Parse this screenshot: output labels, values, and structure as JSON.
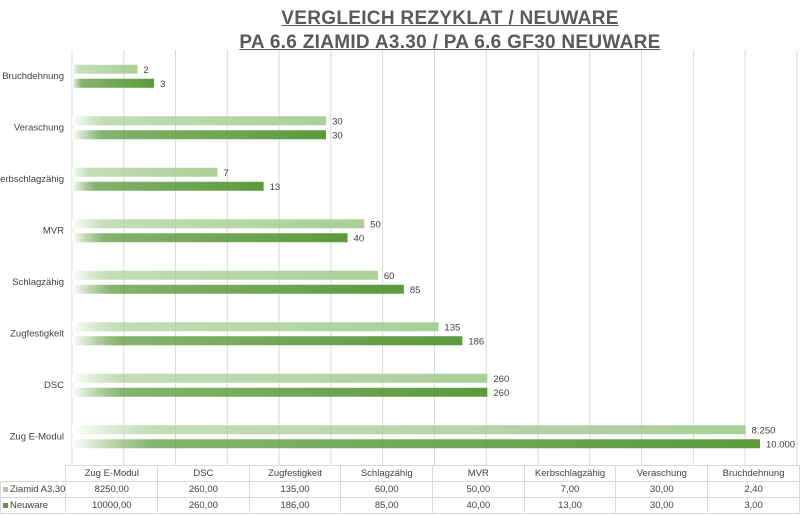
{
  "chart_data": {
    "type": "bar",
    "orientation": "horizontal",
    "title": [
      "VERGLEICH REZYKLAT / NEUWARE",
      "PA 6.6 ZIAMID A3.30 / PA 6.6 GF30 NEUWARE"
    ],
    "categories": [
      "Zug E-Modul",
      "DSC",
      "Zugfestigkeit",
      "Schlagzähig",
      "MVR",
      "Kerbschlagzähig",
      "Veraschung",
      "Bruchdehnung"
    ],
    "x_scale": "log",
    "log_base": 2,
    "xlim": [
      1,
      16384
    ],
    "axis_labels_visible": false,
    "grid": true,
    "legend": "data-table",
    "series": [
      {
        "name": "Ziamid A3.30",
        "color": "#a9cf97",
        "values": [
          8250,
          260,
          135,
          60,
          50,
          7,
          30,
          2.4
        ],
        "data_labels": [
          "8.250",
          "260",
          "135",
          "60",
          "50",
          "7",
          "30",
          "2"
        ],
        "table_values": [
          "8250,00",
          "260,00",
          "135,00",
          "60,00",
          "50,00",
          "7,00",
          "30,00",
          "2,40"
        ]
      },
      {
        "name": "Neuware",
        "color": "#5b9a3c",
        "values": [
          10000,
          260,
          186,
          85,
          40,
          13,
          30,
          3
        ],
        "data_labels": [
          "10.000",
          "260",
          "186",
          "85",
          "40",
          "13",
          "30",
          "3"
        ],
        "table_values": [
          "10000,00",
          "260,00",
          "186,00",
          "85,00",
          "40,00",
          "13,00",
          "30,00",
          "3,00"
        ]
      }
    ]
  }
}
